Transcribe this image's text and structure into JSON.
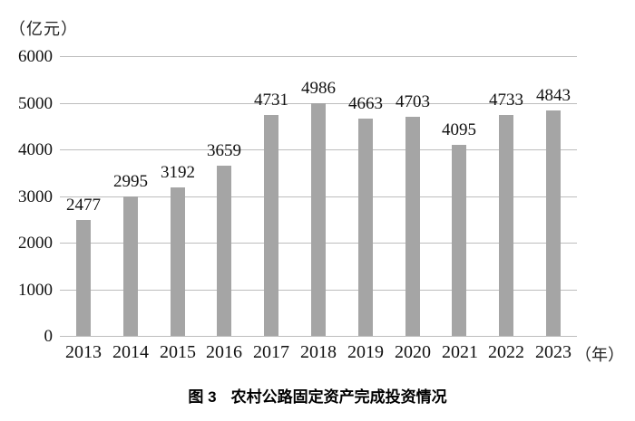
{
  "figure": {
    "caption_prefix": "图 3",
    "caption_title": "农村公路固定资产完成投资情况"
  },
  "chart_data": {
    "type": "bar",
    "title": "图 3 农村公路固定资产完成投资情况",
    "ylabel": "（亿元）",
    "xlabel": "（年）",
    "categories": [
      "2013",
      "2014",
      "2015",
      "2016",
      "2017",
      "2018",
      "2019",
      "2020",
      "2021",
      "2022",
      "2023"
    ],
    "values": [
      2477,
      2995,
      3192,
      3659,
      4731,
      4986,
      4663,
      4703,
      4095,
      4733,
      4843
    ],
    "ylim": [
      0,
      6000
    ],
    "ytick_step": 1000,
    "yticks": [
      0,
      1000,
      2000,
      3000,
      4000,
      5000,
      6000
    ],
    "grid": true,
    "legend": false,
    "data_labels": true,
    "bar_color": "#a5a5a5",
    "grid_color": "#bdbdbd",
    "text_color": "#111111"
  }
}
